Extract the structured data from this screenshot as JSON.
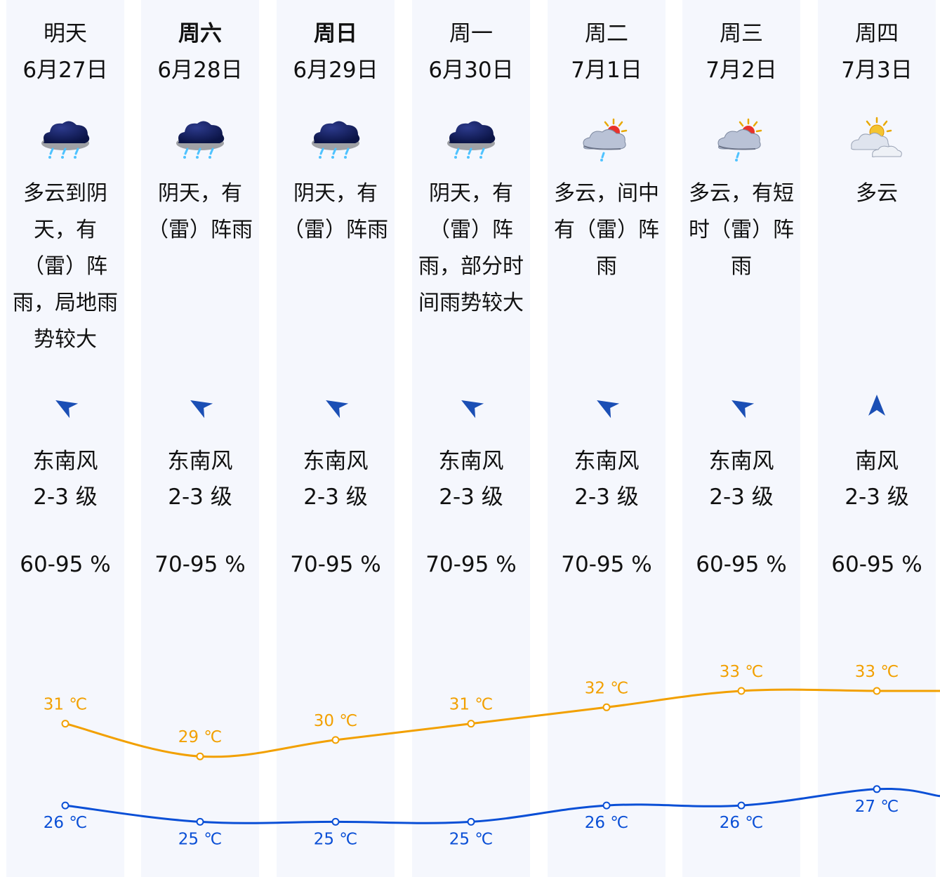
{
  "colors": {
    "column_bg": "#f5f7fd",
    "high_line": "#f2a000",
    "low_line": "#0a4fd6",
    "wind_arrow": "#1b4fb5",
    "text": "#111111"
  },
  "days": [
    {
      "name": "明天",
      "bold": false,
      "date": "6月27日",
      "icon": "heavy-rain-cloud-icon",
      "desc": "多云到阴天，有（雷）阵雨，局地雨势较大",
      "wind_icon": "wind-arrow-southeast-icon",
      "wind_dir": "东南风",
      "wind_level": "2-3 级",
      "humidity": "60-95 %"
    },
    {
      "name": "周六",
      "bold": true,
      "date": "6月28日",
      "icon": "heavy-rain-cloud-icon",
      "desc": "阴天，有（雷）阵雨",
      "wind_icon": "wind-arrow-southeast-icon",
      "wind_dir": "东南风",
      "wind_level": "2-3 级",
      "humidity": "70-95 %"
    },
    {
      "name": "周日",
      "bold": true,
      "date": "6月29日",
      "icon": "heavy-rain-cloud-icon",
      "desc": "阴天，有（雷）阵雨",
      "wind_icon": "wind-arrow-southeast-icon",
      "wind_dir": "东南风",
      "wind_level": "2-3 级",
      "humidity": "70-95 %"
    },
    {
      "name": "周一",
      "bold": false,
      "date": "6月30日",
      "icon": "heavy-rain-cloud-icon",
      "desc": "阴天，有（雷）阵雨，部分时间雨势较大",
      "wind_icon": "wind-arrow-southeast-icon",
      "wind_dir": "东南风",
      "wind_level": "2-3 级",
      "humidity": "70-95 %"
    },
    {
      "name": "周二",
      "bold": false,
      "date": "7月1日",
      "icon": "sun-cloud-shower-icon",
      "desc": "多云，间中有（雷）阵雨",
      "wind_icon": "wind-arrow-southeast-icon",
      "wind_dir": "东南风",
      "wind_level": "2-3 级",
      "humidity": "70-95 %"
    },
    {
      "name": "周三",
      "bold": false,
      "date": "7月2日",
      "icon": "sun-cloud-shower-icon",
      "desc": "多云，有短时（雷）阵雨",
      "wind_icon": "wind-arrow-southeast-icon",
      "wind_dir": "东南风",
      "wind_level": "2-3 级",
      "humidity": "60-95 %"
    },
    {
      "name": "周四",
      "bold": false,
      "date": "7月3日",
      "icon": "sun-behind-clouds-icon",
      "desc": "多云",
      "wind_icon": "wind-arrow-south-icon",
      "wind_dir": "南风",
      "wind_level": "2-3 级",
      "humidity": "60-95 %"
    }
  ],
  "chart_data": {
    "type": "line",
    "x": [
      "6月27日",
      "6月28日",
      "6月29日",
      "6月30日",
      "7月1日",
      "7月2日",
      "7月3日"
    ],
    "series": [
      {
        "key": "high",
        "values": [
          31,
          29,
          30,
          31,
          32,
          33,
          33
        ],
        "labels": [
          "31 ℃",
          "29 ℃",
          "30 ℃",
          "31 ℃",
          "32 ℃",
          "33 ℃",
          "33 ℃"
        ],
        "color": "#f2a000",
        "label_position": "above"
      },
      {
        "key": "low",
        "values": [
          26,
          25,
          25,
          25,
          26,
          26,
          27
        ],
        "labels": [
          "26 ℃",
          "25 ℃",
          "25 ℃",
          "25 ℃",
          "26 ℃",
          "26 ℃",
          "27 ℃"
        ],
        "color": "#0a4fd6",
        "label_position": "below"
      }
    ],
    "line_continues_past_last": true,
    "grid": false,
    "legend": "none"
  }
}
